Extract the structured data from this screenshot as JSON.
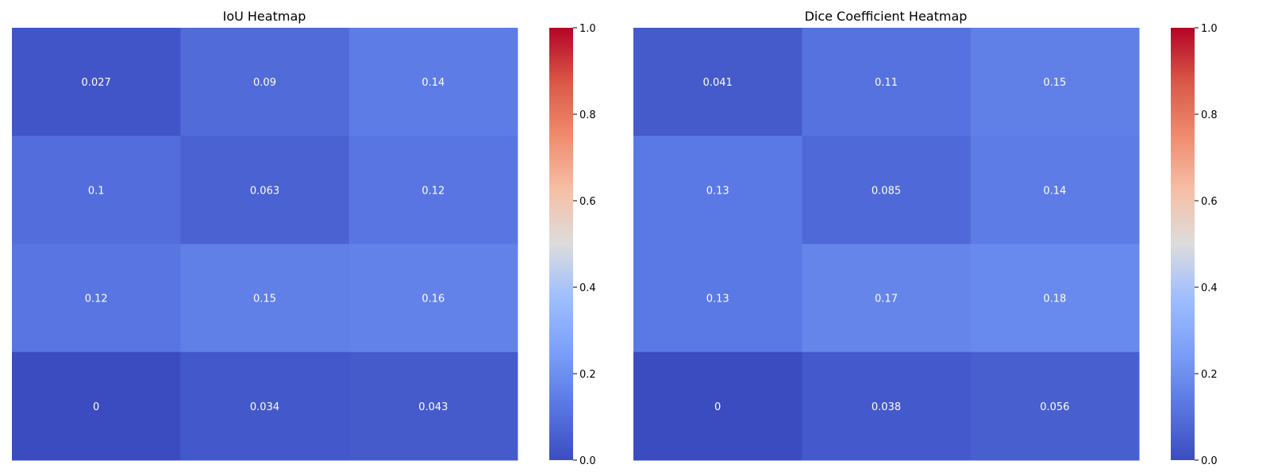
{
  "chart_data": [
    {
      "type": "heatmap",
      "title": "IoU Heatmap",
      "rows": 4,
      "cols": 3,
      "values": [
        [
          0.027,
          0.09,
          0.14
        ],
        [
          0.1,
          0.063,
          0.12
        ],
        [
          0.12,
          0.15,
          0.16
        ],
        [
          0,
          0.034,
          0.043
        ]
      ],
      "labels": [
        [
          "0.027",
          "0.09",
          "0.14"
        ],
        [
          "0.1",
          "0.063",
          "0.12"
        ],
        [
          "0.12",
          "0.15",
          "0.16"
        ],
        [
          "0",
          "0.034",
          "0.043"
        ]
      ],
      "colorbar": {
        "range": [
          0.0,
          1.0
        ],
        "ticks": [
          "0.0",
          "0.2",
          "0.4",
          "0.6",
          "0.8",
          "1.0"
        ],
        "colormap": "coolwarm"
      }
    },
    {
      "type": "heatmap",
      "title": "Dice Coefficient Heatmap",
      "rows": 4,
      "cols": 3,
      "values": [
        [
          0.041,
          0.11,
          0.15
        ],
        [
          0.13,
          0.085,
          0.14
        ],
        [
          0.13,
          0.17,
          0.18
        ],
        [
          0,
          0.038,
          0.056
        ]
      ],
      "labels": [
        [
          "0.041",
          "0.11",
          "0.15"
        ],
        [
          "0.13",
          "0.085",
          "0.14"
        ],
        [
          "0.13",
          "0.17",
          "0.18"
        ],
        [
          "0",
          "0.038",
          "0.056"
        ]
      ],
      "colorbar": {
        "range": [
          0.0,
          1.0
        ],
        "ticks": [
          "0.0",
          "0.2",
          "0.4",
          "0.6",
          "0.8",
          "1.0"
        ],
        "colormap": "coolwarm"
      }
    }
  ]
}
